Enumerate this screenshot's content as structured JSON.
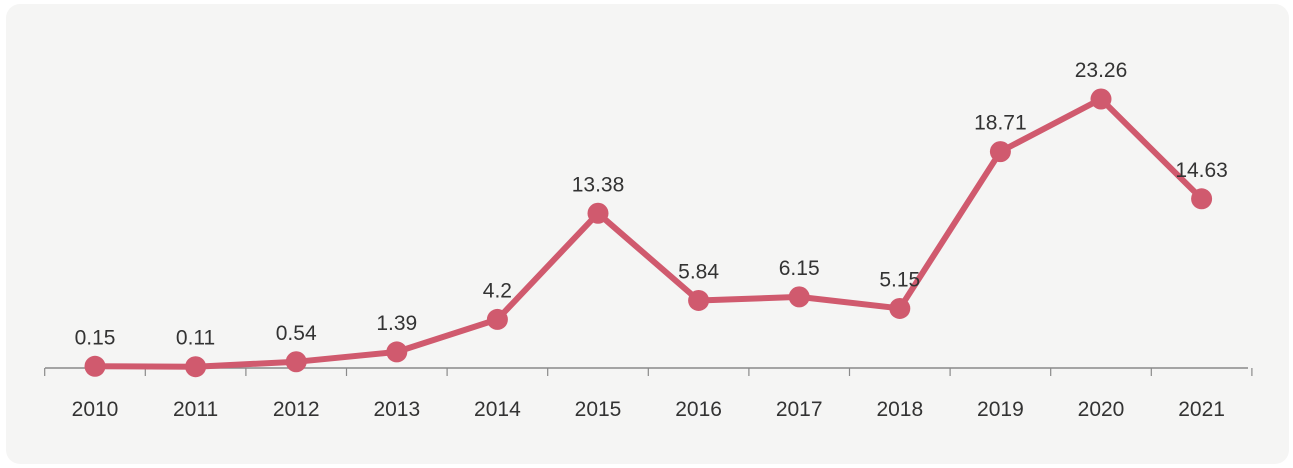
{
  "chart_data": {
    "type": "line",
    "categories": [
      "2010",
      "2011",
      "2012",
      "2013",
      "2014",
      "2015",
      "2016",
      "2017",
      "2018",
      "2019",
      "2020",
      "2021"
    ],
    "values": [
      0.15,
      0.11,
      0.54,
      1.39,
      4.2,
      13.38,
      5.84,
      6.15,
      5.15,
      18.71,
      23.26,
      14.63
    ],
    "data_labels": [
      "0.15",
      "0.11",
      "0.54",
      "1.39",
      "4.2",
      "13.38",
      "5.84",
      "6.15",
      "5.15",
      "18.71",
      "23.26",
      "14.63"
    ],
    "ylim": [
      0,
      25
    ],
    "grid": false,
    "legend": "none",
    "line_color": "#d05a6e",
    "axis_color": "#8a8a8a",
    "text_color": "#333333",
    "background_color": "#f5f5f4"
  }
}
